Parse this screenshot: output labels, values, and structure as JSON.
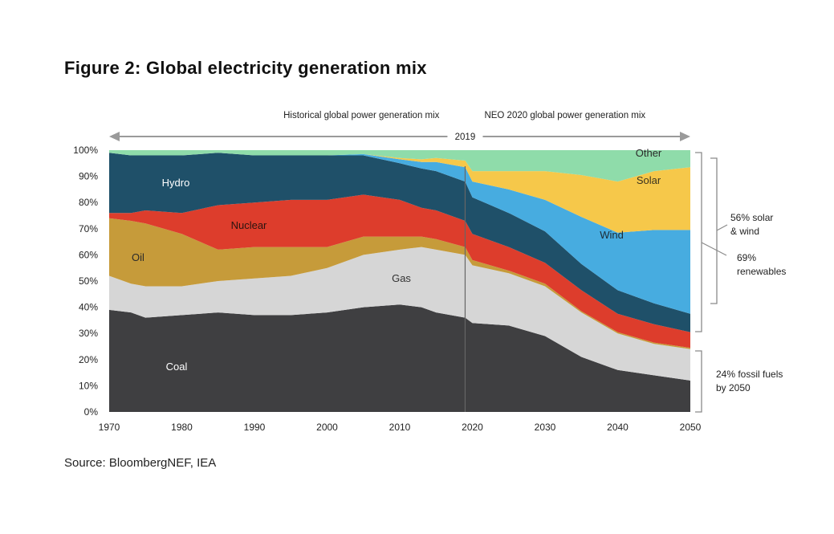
{
  "title": "Figure 2: Global electricity generation mix",
  "source": "Source: BloombergNEF, IEA",
  "colors": {
    "coal": "#3f3f41",
    "gas": "#d6d6d6",
    "oil": "#c69b3a",
    "nuclear": "#dd3d2c",
    "hydro": "#1f5069",
    "wind": "#47ace0",
    "solar": "#f6c84a",
    "other": "#8fdcaa"
  },
  "chart_data": {
    "type": "area",
    "stacked": true,
    "title": "Figure 2: Global electricity generation mix",
    "xlabel": "",
    "ylabel": "",
    "xlim": [
      1970,
      2050
    ],
    "ylim": [
      0,
      100
    ],
    "x_ticks": [
      "1970",
      "1980",
      "1990",
      "2000",
      "2010",
      "2020",
      "2030",
      "2040",
      "2050"
    ],
    "y_ticks": [
      "0%",
      "10%",
      "20%",
      "30%",
      "40%",
      "50%",
      "60%",
      "70%",
      "80%",
      "90%",
      "100%"
    ],
    "divider_year": 2019,
    "divider_label": "2019",
    "period_labels": {
      "historical": "Historical global power generation mix",
      "forecast": "NEO 2020  global power generation mix"
    },
    "annotations": {
      "solar_wind": [
        "56% solar",
        "& wind"
      ],
      "renewables": [
        "69%",
        "renewables"
      ],
      "fossil": [
        "24% fossil fuels",
        "by 2050"
      ]
    },
    "x": [
      1970,
      1973,
      1975,
      1980,
      1985,
      1990,
      1995,
      2000,
      2005,
      2010,
      2013,
      2015,
      2019,
      2020,
      2025,
      2030,
      2035,
      2040,
      2045,
      2050
    ],
    "series": [
      {
        "name": "Coal",
        "key": "coal",
        "values": [
          39,
          38,
          36,
          37,
          38,
          37,
          37,
          38,
          40,
          41,
          40,
          38,
          36,
          34,
          33,
          29,
          21,
          16,
          14,
          12
        ]
      },
      {
        "name": "Gas",
        "key": "gas",
        "values": [
          13,
          11,
          12,
          11,
          12,
          14,
          15,
          17,
          20,
          21,
          23,
          24,
          24,
          22,
          20,
          19,
          17,
          14,
          12,
          12
        ]
      },
      {
        "name": "Oil",
        "key": "oil",
        "values": [
          22,
          24,
          24,
          20,
          12,
          12,
          11,
          8,
          7,
          5,
          4,
          4,
          3,
          2,
          1,
          1,
          0.5,
          0.5,
          0.5,
          0.5
        ]
      },
      {
        "name": "Nuclear",
        "key": "nuclear",
        "values": [
          2,
          3,
          5,
          8,
          17,
          17,
          18,
          18,
          16,
          14,
          11,
          11,
          10,
          10,
          9,
          8,
          8,
          7,
          7,
          6
        ]
      },
      {
        "name": "Hydro",
        "key": "hydro",
        "values": [
          23,
          22,
          21,
          22,
          20,
          18,
          17,
          17,
          15,
          14,
          15,
          15,
          15,
          14,
          13,
          12,
          10,
          9,
          8,
          7
        ]
      },
      {
        "name": "Wind",
        "key": "wind",
        "values": [
          0,
          0,
          0,
          0,
          0,
          0,
          0,
          0,
          0.5,
          1.5,
          2.5,
          3.5,
          5.5,
          6,
          9,
          12,
          18,
          22,
          28,
          32
        ]
      },
      {
        "name": "Solar",
        "key": "solar",
        "values": [
          0,
          0,
          0,
          0,
          0,
          0,
          0,
          0,
          0,
          0.5,
          1,
          1.5,
          2.5,
          4,
          7,
          11,
          16,
          19.5,
          22.5,
          24
        ]
      },
      {
        "name": "Other",
        "key": "other",
        "values": [
          1,
          2,
          2,
          2,
          1,
          2,
          2,
          2,
          1.5,
          3,
          3.5,
          3,
          4,
          8,
          8,
          8,
          9.5,
          12,
          8,
          6.5
        ]
      }
    ]
  }
}
